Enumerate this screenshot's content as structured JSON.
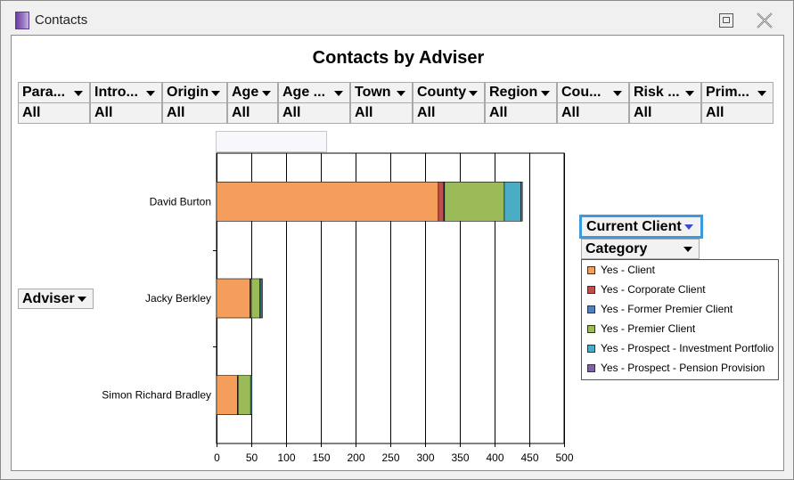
{
  "window": {
    "title": "Contacts"
  },
  "filters": [
    {
      "label": "Para...",
      "value": "All"
    },
    {
      "label": "Intro...",
      "value": "All"
    },
    {
      "label": "Origin",
      "value": "All"
    },
    {
      "label": "Age",
      "value": "All"
    },
    {
      "label": "Age ...",
      "value": "All"
    },
    {
      "label": "Town",
      "value": "All"
    },
    {
      "label": "County",
      "value": "All"
    },
    {
      "label": "Region",
      "value": "All"
    },
    {
      "label": "Cou...",
      "value": "All"
    },
    {
      "label": "Risk ...",
      "value": "All"
    },
    {
      "label": "Prim...",
      "value": "All"
    }
  ],
  "fields": {
    "row_field": "Adviser",
    "series_field": "Current Client",
    "category_field": "Category"
  },
  "legend": [
    {
      "label": "Yes - Client",
      "color": "#f59d5a"
    },
    {
      "label": "Yes - Corporate Client",
      "color": "#c0504d"
    },
    {
      "label": "Yes - Former Premier Client",
      "color": "#4f81bd"
    },
    {
      "label": "Yes - Premier Client",
      "color": "#9bbb59"
    },
    {
      "label": "Yes - Prospect - Investment Portfolio",
      "color": "#4bacc6"
    },
    {
      "label": "Yes - Prospect - Pension Provision",
      "color": "#8064a2"
    }
  ],
  "chart_data": {
    "type": "bar",
    "orientation": "horizontal",
    "stacked": true,
    "title": "Contacts by Adviser",
    "categories": [
      "David Burton",
      "Jacky Berkley",
      "Simon Richard Bradley"
    ],
    "series": [
      {
        "name": "Yes - Client",
        "color": "#f59d5a",
        "values": [
          319,
          48,
          30
        ]
      },
      {
        "name": "Yes - Corporate Client",
        "color": "#c0504d",
        "values": [
          8,
          2,
          1
        ]
      },
      {
        "name": "Yes - Former Premier Client",
        "color": "#4f81bd",
        "values": [
          1,
          0,
          0
        ]
      },
      {
        "name": "Yes - Premier Client",
        "color": "#9bbb59",
        "values": [
          86,
          12,
          18
        ]
      },
      {
        "name": "Yes - Prospect - Investment Portfolio",
        "color": "#4bacc6",
        "values": [
          24,
          2,
          2
        ]
      },
      {
        "name": "Yes - Prospect - Pension Provision",
        "color": "#8064a2",
        "values": [
          2,
          2,
          0
        ]
      }
    ],
    "xlim": [
      0,
      500
    ],
    "xticks": [
      0,
      50,
      100,
      150,
      200,
      250,
      300,
      350,
      400,
      450,
      500
    ],
    "grid": true,
    "legend_position": "right"
  }
}
